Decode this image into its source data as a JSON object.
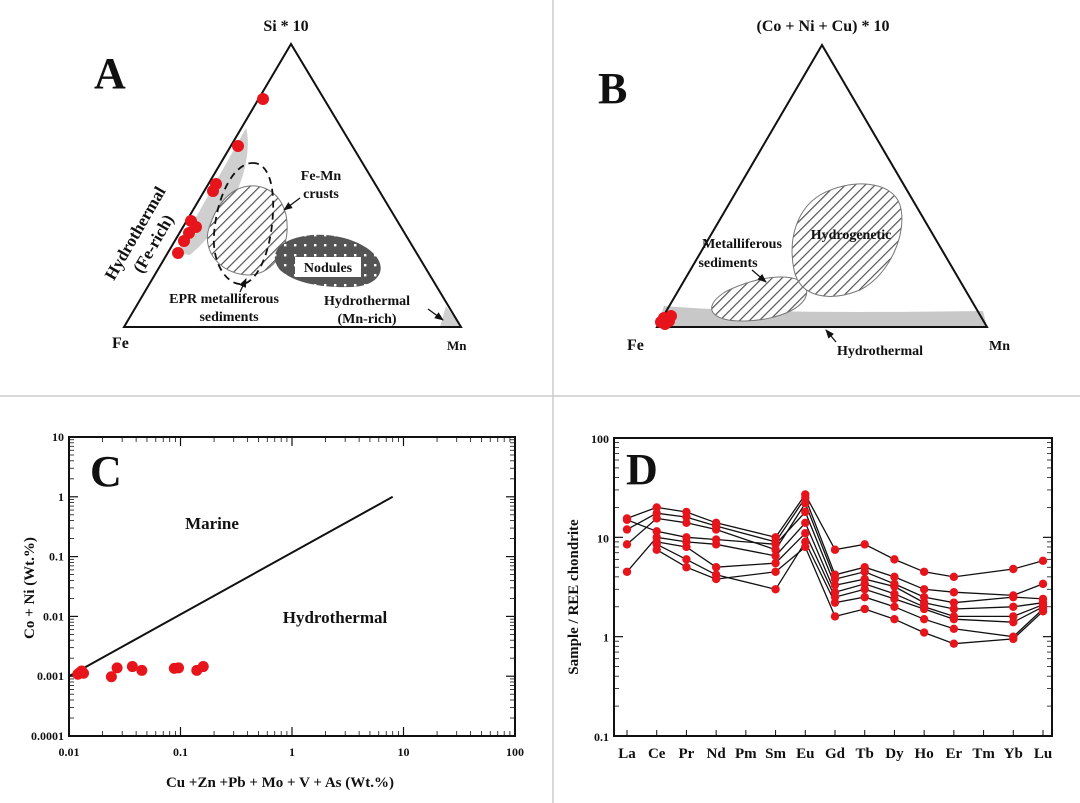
{
  "panels": {
    "A": {
      "letter": "A",
      "vertices": {
        "top": "Si * 10",
        "left": "Fe",
        "right": "Mn"
      },
      "fields": {
        "hydro_fe_1": "Hydrothermal",
        "hydro_fe_2": "(Fe-rich)",
        "femn_1": "Fe-Mn",
        "femn_2": "crusts",
        "nodules": "Nodules",
        "epr_1": "EPR metalliferous",
        "epr_2": "sediments",
        "hydro_mn_1": "Hydrothermal",
        "hydro_mn_2": "(Mn-rich)"
      }
    },
    "B": {
      "letter": "B",
      "vertices": {
        "top": "(Co + Ni + Cu) * 10",
        "left": "Fe",
        "right": "Mn"
      },
      "fields": {
        "metal_1": "Metalliferous",
        "metal_2": "sediments",
        "hydrogenetic": "Hydrogenetic",
        "hydrothermal": "Hydrothermal"
      }
    },
    "C": {
      "letter": "C",
      "fields": {
        "marine": "Marine",
        "hydrothermal": "Hydrothermal"
      }
    },
    "D": {
      "letter": "D"
    }
  },
  "colors": {
    "point": "#e8141b",
    "light_field": "#cfcfcf",
    "dark_field": "#555555",
    "line": "#111111",
    "divider": "#cccccc"
  },
  "chart_data": [
    {
      "type": "scatter",
      "panel": "C",
      "xlabel": "Cu +Zn +Pb + Mo + V + As (Wt.%)",
      "ylabel": "Co + Ni (Wt.%)",
      "xscale": "log",
      "yscale": "log",
      "xlim": [
        0.01,
        100
      ],
      "ylim": [
        0.0001,
        10
      ],
      "xticks": [
        "0.01",
        "0.1",
        "1",
        "10",
        "100"
      ],
      "yticks": [
        "0.0001",
        "0.001",
        "0.01",
        "0.1",
        "1",
        "10"
      ],
      "boundary_line": [
        [
          0.01,
          0.001
        ],
        [
          8,
          1
        ]
      ],
      "points": [
        [
          0.012,
          0.00108
        ],
        [
          0.0125,
          0.00115
        ],
        [
          0.013,
          0.00122
        ],
        [
          0.0135,
          0.00112
        ],
        [
          0.024,
          0.00098
        ],
        [
          0.027,
          0.00138
        ],
        [
          0.037,
          0.00145
        ],
        [
          0.045,
          0.00125
        ],
        [
          0.088,
          0.00135
        ],
        [
          0.096,
          0.00138
        ],
        [
          0.14,
          0.00125
        ],
        [
          0.16,
          0.00145
        ]
      ]
    },
    {
      "type": "line",
      "panel": "D",
      "ylabel": "Sample / REE chondrite",
      "yscale": "log",
      "ylim": [
        0.1,
        100
      ],
      "yticks": [
        "0.1",
        "1",
        "10",
        "100"
      ],
      "categories": [
        "La",
        "Ce",
        "Pr",
        "Nd",
        "Pm",
        "Sm",
        "Eu",
        "Gd",
        "Tb",
        "Dy",
        "Ho",
        "Er",
        "Tm",
        "Yb",
        "Lu"
      ],
      "series": [
        {
          "values": [
            15.5,
            20,
            18,
            14,
            null,
            10,
            27,
            7.5,
            8.5,
            6,
            4.5,
            4,
            null,
            4.8,
            5.8
          ]
        },
        {
          "values": [
            12,
            17.5,
            16,
            13,
            null,
            9,
            25,
            4.2,
            5,
            4,
            3,
            2.8,
            null,
            2.6,
            3.4
          ]
        },
        {
          "values": [
            8.5,
            15.5,
            14,
            12,
            null,
            7.5,
            22,
            3.8,
            4.5,
            3.4,
            2.5,
            2.2,
            null,
            2.5,
            2.4
          ]
        },
        {
          "values": [
            15,
            11.5,
            10,
            9.5,
            null,
            8.5,
            18,
            3.3,
            3.8,
            3.2,
            2.2,
            1.9,
            null,
            2.0,
            2.2
          ]
        },
        {
          "values": [
            4.5,
            10,
            9,
            8.5,
            null,
            6.5,
            14,
            2.8,
            3.4,
            2.7,
            2.0,
            1.6,
            null,
            1.6,
            2.1
          ]
        },
        {
          "values": [
            null,
            9,
            8,
            5,
            null,
            5.5,
            11,
            2.5,
            3,
            2.4,
            1.9,
            1.5,
            null,
            1.4,
            2.0
          ]
        },
        {
          "values": [
            null,
            8.5,
            6,
            4.2,
            null,
            3,
            9,
            2.2,
            2.5,
            2,
            1.5,
            1.2,
            null,
            1.0,
            1.9
          ]
        },
        {
          "values": [
            null,
            7.5,
            5,
            3.8,
            null,
            4.5,
            8,
            1.6,
            1.9,
            1.5,
            1.1,
            0.85,
            null,
            0.95,
            1.8
          ]
        }
      ]
    }
  ]
}
